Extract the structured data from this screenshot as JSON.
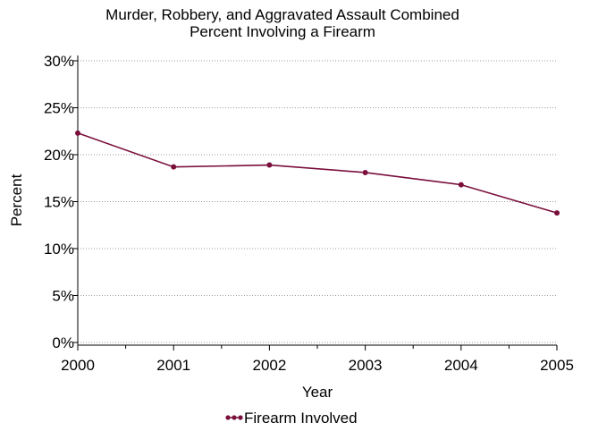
{
  "chart_data": {
    "type": "line",
    "title_lines": [
      "Murder, Robbery, and Aggravated Assault Combined",
      "Percent Involving a Firearm"
    ],
    "xlabel": "Year",
    "ylabel": "Percent",
    "x": [
      2000,
      2001,
      2002,
      2003,
      2004,
      2005
    ],
    "xticks": [
      "2000",
      "2001",
      "2002",
      "2003",
      "2004",
      "2005"
    ],
    "yticks": [
      "0%",
      "5%",
      "10%",
      "15%",
      "20%",
      "25%",
      "30%"
    ],
    "ylim": [
      0,
      30
    ],
    "grid": true,
    "legend_position": "bottom",
    "series": [
      {
        "name": "Firearm Involved",
        "color": "#7a0f3c",
        "values": [
          22.3,
          18.7,
          18.9,
          18.1,
          16.8,
          13.8
        ]
      }
    ]
  }
}
